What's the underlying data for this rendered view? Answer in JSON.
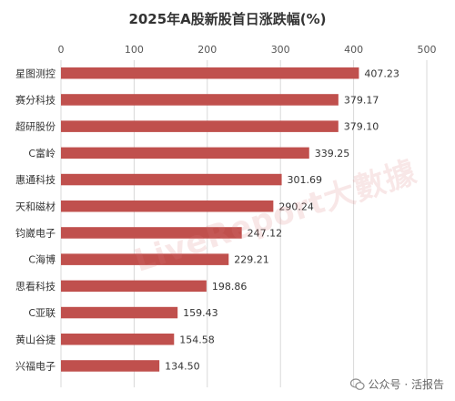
{
  "chart_data": {
    "type": "bar",
    "orientation": "horizontal",
    "title": "2025年A股新股首日涨跌幅(%)",
    "xlim": [
      0,
      500
    ],
    "xticks": [
      0,
      100,
      200,
      300,
      400,
      500
    ],
    "xaxis_position": "top",
    "grid": true,
    "categories": [
      "星图测控",
      "赛分科技",
      "超研股份",
      "C富岭",
      "惠通科技",
      "天和磁材",
      "钧崴电子",
      "C海博",
      "思看科技",
      "C亚联",
      "黄山谷捷",
      "兴福电子"
    ],
    "values": [
      407.23,
      379.17,
      379.1,
      339.25,
      301.69,
      290.24,
      247.12,
      229.21,
      198.86,
      159.43,
      154.58,
      134.5
    ],
    "value_labels": [
      "407.23",
      "379.17",
      "379.10",
      "339.25",
      "301.69",
      "290.24",
      "247.12",
      "229.21",
      "198.86",
      "159.43",
      "154.58",
      "134.50"
    ],
    "bar_color": "#c0504d"
  },
  "watermark": "LiveReport大數據",
  "source": "公众号 · 活报告",
  "colors": {
    "bar": "#c0504d",
    "grid": "#d9d9d9"
  }
}
